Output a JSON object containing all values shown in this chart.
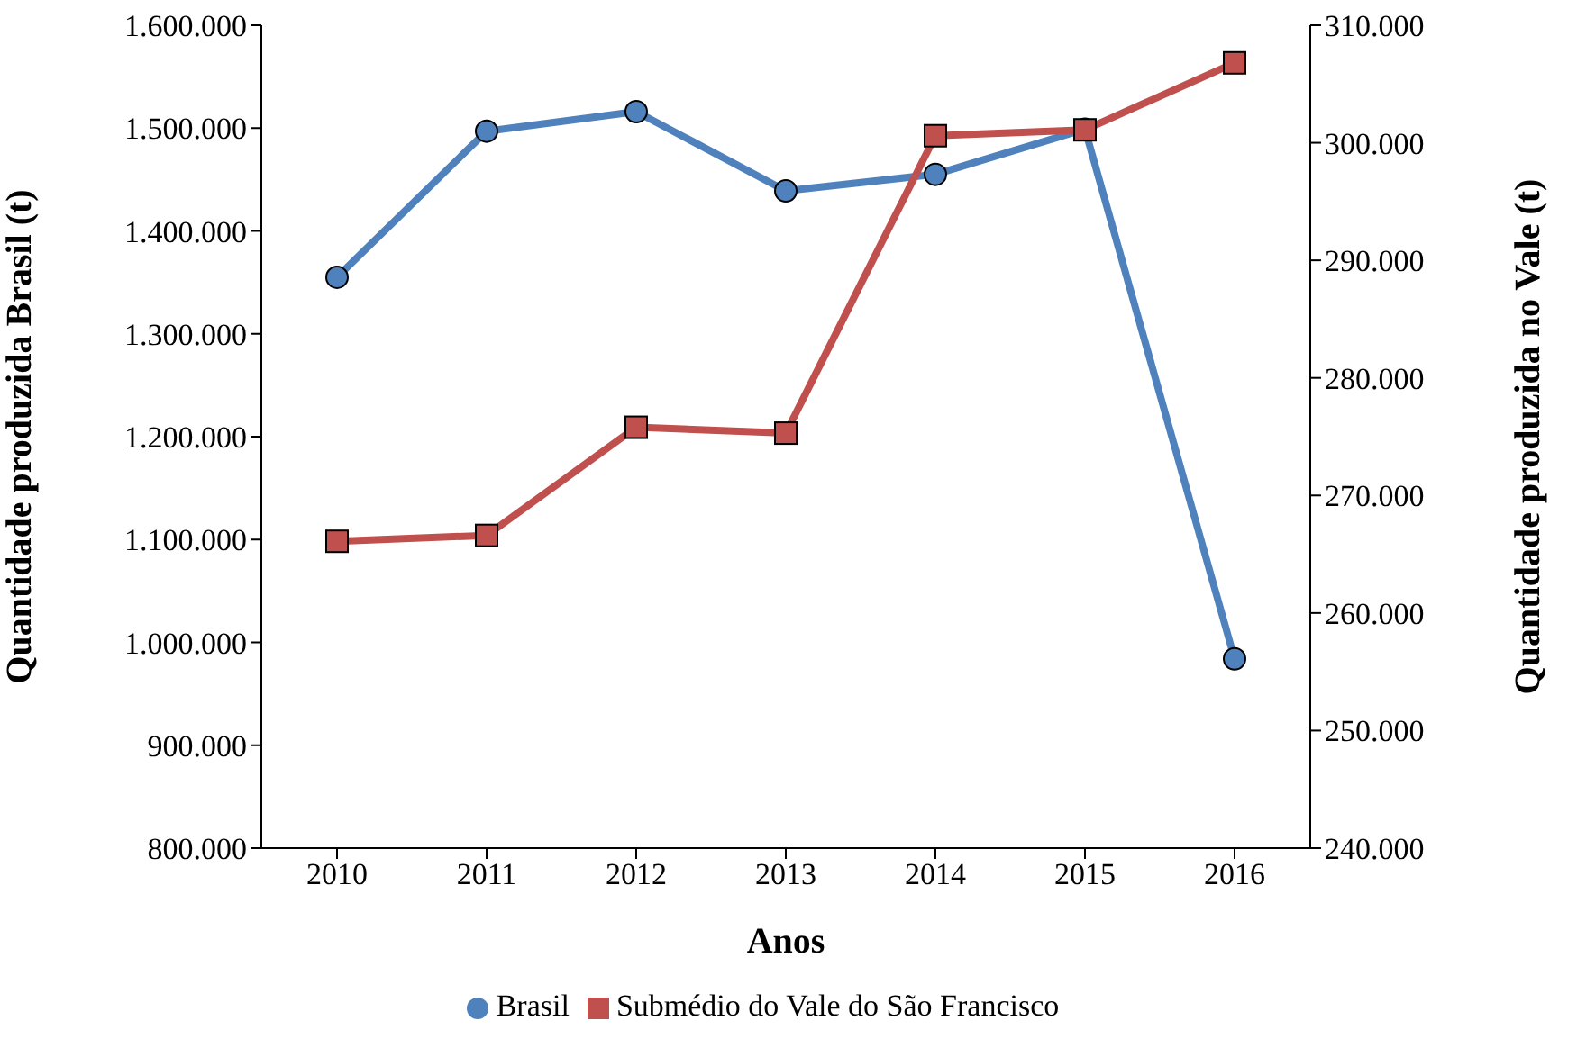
{
  "chart_data": {
    "type": "line",
    "xlabel": "Anos",
    "ylabel": "Quantidade produzida Brasil (t)",
    "y2label": "Quantidade produzida no Vale (t)",
    "categories": [
      "2010",
      "2011",
      "2012",
      "2013",
      "2014",
      "2015",
      "2016"
    ],
    "series": [
      {
        "name": "Brasil",
        "color": "#4f81bd",
        "marker": "circle",
        "values": [
          1355000,
          1497000,
          1516000,
          1439000,
          1455000,
          1499000,
          984000
        ]
      },
      {
        "name": "Submédio do Vale do São Francisco",
        "color": "#c0504d",
        "marker": "square",
        "axis": "y2",
        "values": [
          266100,
          266600,
          275800,
          275300,
          300600,
          301100,
          306800
        ]
      }
    ],
    "ylim": [
      800000,
      1600000
    ],
    "yticks": [
      {
        "value": 800000,
        "label": "800.000"
      },
      {
        "value": 900000,
        "label": "900.000"
      },
      {
        "value": 1000000,
        "label": "1.000.000"
      },
      {
        "value": 1100000,
        "label": "1.100.000"
      },
      {
        "value": 1200000,
        "label": "1.200.000"
      },
      {
        "value": 1300000,
        "label": "1.300.000"
      },
      {
        "value": 1400000,
        "label": "1.400.000"
      },
      {
        "value": 1500000,
        "label": "1.500.000"
      },
      {
        "value": 1600000,
        "label": "1.600.000"
      }
    ],
    "y2lim": [
      240000,
      310000
    ],
    "y2ticks": [
      {
        "value": 240000,
        "label": "240.000"
      },
      {
        "value": 250000,
        "label": "250.000"
      },
      {
        "value": 260000,
        "label": "260.000"
      },
      {
        "value": 270000,
        "label": "270.000"
      },
      {
        "value": 280000,
        "label": "280.000"
      },
      {
        "value": 290000,
        "label": "290.000"
      },
      {
        "value": 300000,
        "label": "300.000"
      },
      {
        "value": 310000,
        "label": "310.000"
      }
    ],
    "grid": false,
    "legend": "bottom",
    "line_style": "solid"
  }
}
